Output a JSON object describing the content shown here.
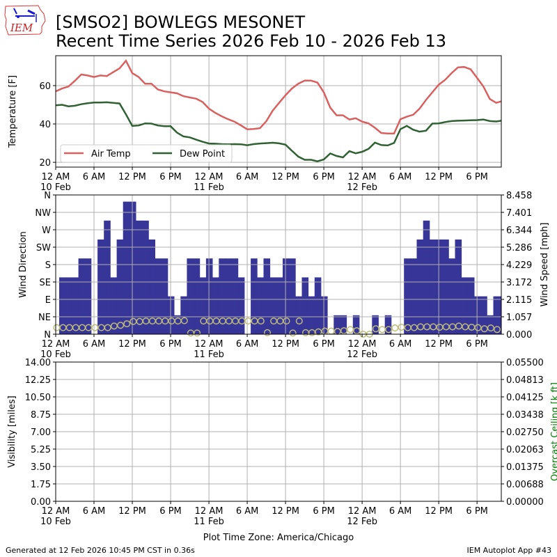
{
  "header": {
    "logo_text": "IEM",
    "title_line1": "[SMSO2] BOWLEGS MESONET",
    "title_line2": "Recent Time Series 2026 Feb 10 - 2026 Feb 13"
  },
  "footer": {
    "timezone": "Plot Time Zone: America/Chicago",
    "generated": "Generated at 12 Feb 2026 10:45 PM CST in 0.36s",
    "app": "IEM Autoplot App #43"
  },
  "colors": {
    "air_temp": "#d9605f",
    "dew_point": "#2f6132",
    "wind_speed_bar": "#373598",
    "wind_dir_marker": "#bcbb7a",
    "ceiling_label": "#008000",
    "grid": "#b0b0b0"
  },
  "x_axis": {
    "hours_range": [
      0,
      69.8
    ],
    "tick_hours": [
      0,
      6,
      12,
      18,
      24,
      30,
      36,
      42,
      48,
      54,
      60,
      66
    ],
    "tick_labels": [
      "12 AM",
      "6 AM",
      "12 PM",
      "6 PM",
      "12 AM",
      "6 AM",
      "12 PM",
      "6 PM",
      "12 AM",
      "6 AM",
      "12 PM",
      "6 PM"
    ],
    "date_labels": [
      {
        "hour": 0,
        "label": "10 Feb"
      },
      {
        "hour": 24,
        "label": "11 Feb"
      },
      {
        "hour": 48,
        "label": "12 Feb"
      }
    ]
  },
  "chart_data": [
    {
      "type": "line",
      "ylabel": "Temperature [F]",
      "ylim": [
        17.5,
        75.6
      ],
      "yticks": [
        20,
        40,
        60
      ],
      "grid": true,
      "legend_placement": "lower-left",
      "x_hours": [
        0,
        1,
        2,
        3,
        4,
        5,
        6,
        7,
        8,
        9,
        10,
        11,
        12,
        13,
        14,
        15,
        16,
        17,
        18,
        19,
        20,
        21,
        22,
        23,
        24,
        25,
        26,
        27,
        28,
        29,
        30,
        31,
        32,
        33,
        34,
        35,
        36,
        37,
        38,
        39,
        40,
        41,
        42,
        43,
        44,
        45,
        46,
        47,
        48,
        49,
        50,
        51,
        52,
        53,
        54,
        55,
        56,
        57,
        58,
        59,
        60,
        61,
        62,
        63,
        64,
        65,
        66,
        67,
        68,
        69,
        70
      ],
      "series": [
        {
          "name": "Air Temp",
          "values": [
            57,
            58.5,
            59.5,
            62.5,
            65.8,
            65.3,
            64.5,
            65.3,
            65,
            67,
            69,
            73,
            66.5,
            64.5,
            61,
            61,
            58,
            57,
            56.5,
            56,
            54.5,
            53.8,
            53.2,
            51.5,
            48,
            45.8,
            44,
            42.5,
            41.2,
            39.3,
            37.2,
            37.4,
            37.8,
            41.5,
            47,
            51,
            55,
            58.5,
            61,
            62.6,
            62.6,
            61.6,
            56.5,
            48.5,
            44.5,
            44.5,
            42.3,
            43,
            41.2,
            40.3,
            38,
            35.3,
            35,
            35,
            42.5,
            43.8,
            44.8,
            48,
            52.5,
            56.5,
            60.5,
            63,
            66.5,
            69.5,
            69.7,
            68.5,
            64,
            59.5,
            53,
            51,
            52
          ]
        },
        {
          "name": "Dew Point",
          "values": [
            49.7,
            50,
            49.2,
            49.5,
            50.3,
            50.8,
            51.2,
            51.2,
            51.3,
            51,
            50.7,
            45,
            39,
            39.2,
            40.3,
            40.2,
            39.2,
            38.8,
            38.8,
            35.5,
            33.5,
            33,
            31.8,
            30.7,
            29.8,
            29.7,
            29.5,
            29.4,
            29.5,
            29.4,
            28.9,
            29.5,
            29.8,
            30,
            30.2,
            29.9,
            29.2,
            26,
            23,
            21.3,
            21.3,
            20.5,
            21.5,
            24.6,
            23.3,
            22.6,
            25.8,
            24.7,
            25.5,
            27,
            30.3,
            29,
            28.8,
            30.1,
            37.3,
            39,
            37,
            36,
            36.5,
            40.2,
            40.3,
            41,
            41.5,
            41.7,
            41.8,
            41.9,
            42,
            42.3,
            41.5,
            41.3,
            41.8
          ]
        }
      ]
    },
    {
      "type": "bar",
      "ylabel": "Wind Direction",
      "y2label": "Wind Speed [mph]",
      "dir_ticks": [
        "N",
        "NE",
        "E",
        "SE",
        "S",
        "SW",
        "W",
        "NW",
        "N"
      ],
      "dir_lim": [
        0,
        360
      ],
      "speed_lim": [
        0,
        8.458
      ],
      "speed_ticks": [
        "0.000",
        "1.057",
        "2.115",
        "3.172",
        "4.229",
        "5.286",
        "6.344",
        "7.401",
        "8.458"
      ],
      "grid": true,
      "speed_bar_start_hour": 0.55,
      "speed_mph_hourly": [
        3.45,
        3.45,
        3.45,
        4.6,
        4.6,
        0,
        5.75,
        6.9,
        3.45,
        5.75,
        8.05,
        8.05,
        6.9,
        6.9,
        5.75,
        4.6,
        4.6,
        2.3,
        1.15,
        2.3,
        4.6,
        4.6,
        3.45,
        4.6,
        3.45,
        4.6,
        4.6,
        4.6,
        3.45,
        0,
        4.6,
        3.45,
        4.6,
        3.45,
        3.45,
        4.6,
        4.6,
        2.3,
        3.45,
        2.3,
        3.45,
        2.3,
        0,
        1.15,
        1.15,
        0,
        1.15,
        0,
        0,
        1.15,
        0,
        1.15,
        0,
        0,
        4.6,
        4.6,
        5.75,
        6.9,
        5.75,
        5.75,
        5.75,
        4.6,
        5.75,
        3.45,
        3.45,
        2.3,
        2.3,
        1.15,
        2.3,
        2.3
      ],
      "direction_deg_hourly": [
        17,
        17,
        17,
        17,
        17,
        17,
        17,
        17,
        17,
        21,
        23,
        27,
        33,
        33,
        34,
        34,
        34,
        34,
        34,
        34,
        35,
        3,
        3,
        34,
        34,
        34,
        34,
        34,
        34,
        34,
        34,
        34,
        34,
        4,
        34,
        34,
        34,
        3,
        34,
        4,
        4,
        6,
        8,
        8,
        7,
        9,
        12,
        9,
        0,
        0,
        14,
        12,
        12,
        16,
        18,
        17,
        17,
        19,
        19,
        19,
        18,
        19,
        19,
        21,
        19,
        18,
        17,
        14,
        16,
        12,
        11
      ]
    },
    {
      "type": "line",
      "ylabel": "Visibility [miles]",
      "y2label": "Overcast Ceiling [k ft]",
      "ylim": [
        0,
        14
      ],
      "yticks": [
        "0.00",
        "1.75",
        "3.50",
        "5.25",
        "7.00",
        "8.75",
        "10.50",
        "12.25",
        "14.00"
      ],
      "y2lim": [
        0,
        0.055
      ],
      "y2ticks": [
        "0.00000",
        "0.00688",
        "0.01375",
        "0.02063",
        "0.02750",
        "0.03438",
        "0.04125",
        "0.04813",
        "0.05500"
      ],
      "grid": true,
      "series": []
    }
  ]
}
